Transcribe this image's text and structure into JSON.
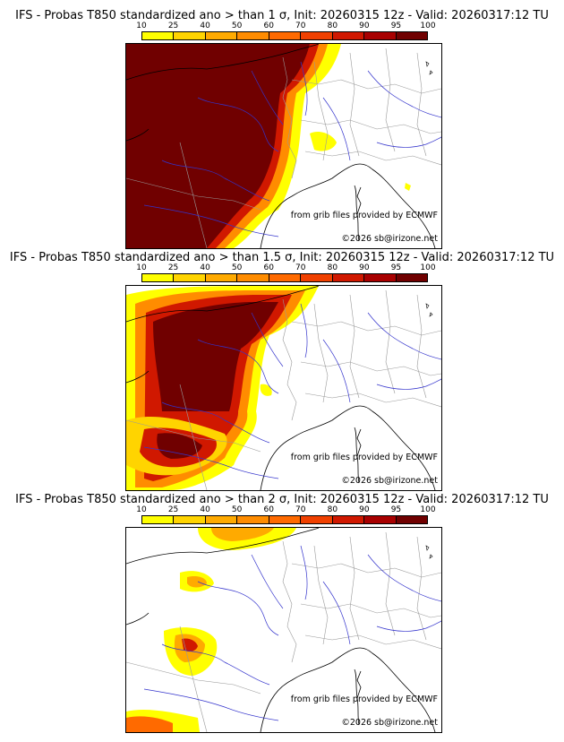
{
  "colorbar": {
    "ticks": [
      "10",
      "25",
      "40",
      "50",
      "60",
      "70",
      "80",
      "90",
      "95",
      "100"
    ],
    "colors": [
      "#ffff00",
      "#ffd400",
      "#ffaa00",
      "#ff8c00",
      "#ff6a00",
      "#f04000",
      "#d01800",
      "#a80000",
      "#700000"
    ]
  },
  "panels": [
    {
      "title": "IFS - Probas T850  standardized ano > than 1 σ, Init: 20260315 12z - Valid: 20260317:12 TU",
      "credit_source": "from grib files provided by ECMWF",
      "credit_copyright": "©2026 sb@irizone.net"
    },
    {
      "title": "IFS - Probas T850  standardized ano > than 1.5 σ, Init: 20260315 12z - Valid: 20260317:12 TU",
      "credit_source": "from grib files provided by ECMWF",
      "credit_copyright": "©2026 sb@irizone.net"
    },
    {
      "title": "IFS - Probas T850  standardized ano > than 2 σ, Init: 20260315 12z - Valid: 20260317:12 TU",
      "credit_source": "from grib files provided by ECMWF",
      "credit_copyright": "©2026 sb@irizone.net"
    }
  ]
}
